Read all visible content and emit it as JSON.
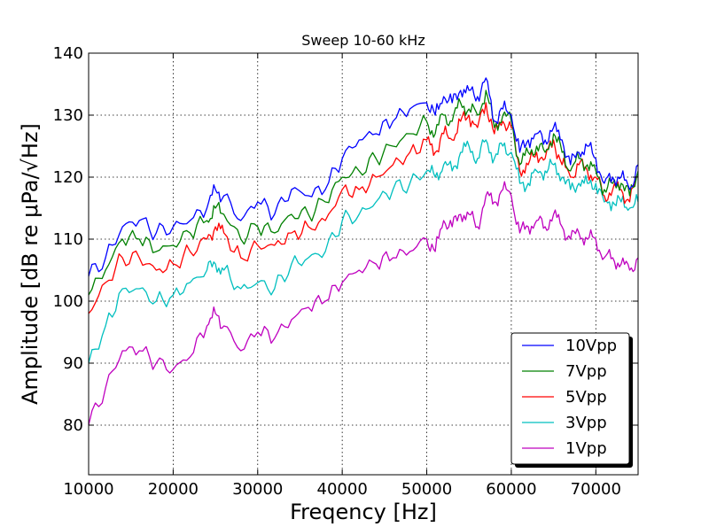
{
  "chart_data": {
    "type": "line",
    "title": "Sweep 10-60 kHz",
    "xlabel": "Freqency [Hz]",
    "ylabel": "Amplitude [dB re μPa/√Hz]",
    "xlim": [
      10000,
      75000
    ],
    "ylim": [
      72,
      140
    ],
    "xticks": [
      10000,
      20000,
      30000,
      40000,
      50000,
      60000,
      70000
    ],
    "yticks": [
      80,
      90,
      100,
      110,
      120,
      130,
      140
    ],
    "xtick_labels": [
      "10000",
      "20000",
      "30000",
      "40000",
      "50000",
      "60000",
      "70000"
    ],
    "ytick_labels": [
      "80",
      "90",
      "100",
      "110",
      "120",
      "130",
      "140"
    ],
    "grid": true,
    "legend_position": "bottom-right",
    "colors": {
      "10Vpp": "#0000ff",
      "7Vpp": "#008000",
      "5Vpp": "#ff0000",
      "3Vpp": "#00bfbf",
      "1Vpp": "#bf00bf"
    },
    "x": [
      10000,
      12000,
      14000,
      16000,
      18000,
      20000,
      22000,
      24000,
      25000,
      26000,
      28000,
      30000,
      32000,
      34000,
      36000,
      38000,
      40000,
      42000,
      44000,
      46000,
      48000,
      50000,
      51000,
      52000,
      53000,
      54000,
      55000,
      56000,
      57000,
      58000,
      59000,
      60000,
      61000,
      62000,
      63000,
      64000,
      65000,
      66000,
      67000,
      68000,
      69000,
      70000,
      71000,
      72000,
      73000,
      74000,
      75000
    ],
    "series": [
      {
        "name": "10Vpp",
        "values": [
          104,
          107,
          112,
          113,
          111,
          112,
          113,
          115,
          118,
          117,
          113,
          116,
          114,
          118,
          117,
          118,
          123,
          126,
          127,
          129,
          131,
          132,
          130,
          133,
          132,
          134,
          134,
          133,
          136,
          129,
          131,
          130,
          124,
          126,
          127,
          126,
          128,
          126,
          122,
          124,
          125,
          123,
          119,
          120,
          120,
          118,
          122
        ]
      },
      {
        "name": "7Vpp",
        "values": [
          101,
          105,
          110,
          110,
          108,
          109,
          111,
          113,
          115,
          114,
          110,
          112,
          111,
          114,
          114,
          116,
          120,
          121,
          123,
          125,
          127,
          129,
          127,
          130,
          129,
          132,
          131,
          130,
          134,
          128,
          130,
          129,
          122,
          124,
          125,
          124,
          127,
          124,
          121,
          123,
          122,
          121,
          118,
          119,
          119,
          117,
          121
        ]
      },
      {
        "name": "5Vpp",
        "values": [
          98,
          103,
          107,
          107,
          105,
          106,
          108,
          110,
          112,
          111,
          107,
          109,
          109,
          111,
          112,
          113,
          118,
          118,
          120,
          122,
          124,
          126,
          124,
          127,
          126,
          129,
          130,
          128,
          132,
          127,
          129,
          128,
          121,
          122,
          124,
          123,
          126,
          122,
          120,
          122,
          121,
          120,
          117,
          118,
          118,
          116,
          120
        ]
      },
      {
        "name": "3Vpp",
        "values": [
          90,
          96,
          102,
          102,
          100,
          101,
          103,
          105,
          106,
          105,
          102,
          103,
          102,
          106,
          107,
          108,
          113,
          114,
          116,
          118,
          119,
          121,
          120,
          122,
          121,
          124,
          125,
          123,
          126,
          123,
          125,
          124,
          119,
          119,
          121,
          121,
          122,
          120,
          118,
          119,
          119,
          119,
          116,
          116,
          116,
          115,
          116
        ]
      },
      {
        "name": "1Vpp",
        "values": [
          80,
          86,
          92,
          92,
          90,
          89,
          91,
          96,
          98,
          96,
          92,
          95,
          94,
          97,
          99,
          100,
          103,
          105,
          106,
          107,
          108,
          110,
          108,
          113,
          112,
          114,
          114,
          112,
          117,
          116,
          118,
          117,
          111,
          112,
          113,
          112,
          114,
          112,
          110,
          111,
          110,
          110,
          107,
          107,
          106,
          105,
          107
        ]
      }
    ]
  }
}
